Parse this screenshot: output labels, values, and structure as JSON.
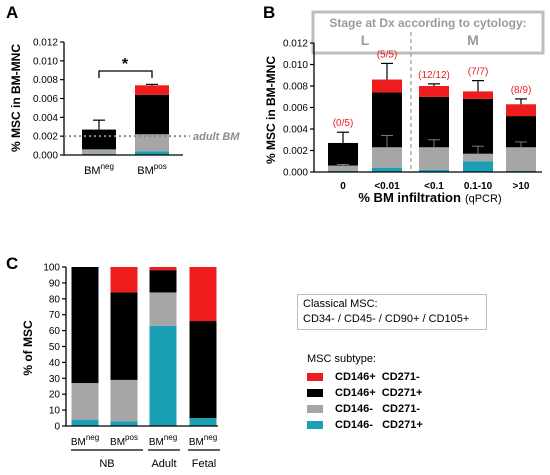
{
  "panels": {
    "a": "A",
    "b": "B",
    "c": "C"
  },
  "colors": {
    "cd146pos_cd271neg": "#ee1c1c",
    "cd146pos_cd271pos": "#000000",
    "cd146neg_cd271neg": "#a6a6a6",
    "cd146neg_cd271pos": "#1a9fb5",
    "reference": "#8c8c8c"
  },
  "legend": {
    "classical_line1": "Classical MSC:",
    "classical_line2": "CD34- / CD45- / CD90+ / CD105+",
    "subtype_title": "MSC subtype:",
    "items": [
      {
        "label": "CD146+  CD271-",
        "color": "#ee1c1c"
      },
      {
        "label": "CD146+  CD271+",
        "color": "#000000"
      },
      {
        "label": "CD146-   CD271-",
        "color": "#a6a6a6"
      },
      {
        "label": "CD146-   CD271+",
        "color": "#1a9fb5"
      }
    ]
  },
  "chart_data": [
    {
      "panel": "A",
      "type": "bar",
      "stacked": true,
      "ylabel": "% MSC in BM-MNC",
      "ylim": [
        0,
        0.012
      ],
      "yticks": [
        "0.000",
        "0.002",
        "0.004",
        "0.006",
        "0.008",
        "0.010",
        "0.012"
      ],
      "categories": [
        {
          "base": "BM",
          "sup": "neg"
        },
        {
          "base": "BM",
          "sup": "pos"
        }
      ],
      "series": [
        {
          "name": "CD146-   CD271+",
          "values": [
            0.0001,
            0.0004
          ]
        },
        {
          "name": "CD146-   CD271-",
          "values": [
            0.0005,
            0.0018
          ]
        },
        {
          "name": "CD146+  CD271+",
          "values": [
            0.0021,
            0.0042
          ]
        },
        {
          "name": "CD146+  CD271-",
          "values": [
            0.0,
            0.001
          ]
        }
      ],
      "error_tops": [
        0.0037,
        0.0075
      ],
      "reference_line": {
        "value": 0.002,
        "label": "adult BM"
      },
      "significance": "*"
    },
    {
      "panel": "B",
      "type": "bar",
      "stacked": true,
      "header": "Stage at Dx according to cytology:",
      "groups": [
        "L",
        "M"
      ],
      "ylabel": "% MSC in BM-MNC",
      "xlabel_bold": "% BM infiltration",
      "xlabel_unit": "(qPCR)",
      "ylim": [
        0,
        0.012
      ],
      "yticks": [
        "0.000",
        "0.002",
        "0.004",
        "0.006",
        "0.008",
        "0.010",
        "0.012"
      ],
      "categories": [
        "0",
        "<0.01",
        "<0.1",
        "0.1-10",
        ">10"
      ],
      "series": [
        {
          "name": "CD146-   CD271+",
          "values": [
            0.0001,
            0.0004,
            0.0002,
            0.001,
            0.0001
          ]
        },
        {
          "name": "CD146-   CD271-",
          "values": [
            0.0005,
            0.0019,
            0.0021,
            0.0007,
            0.0022
          ]
        },
        {
          "name": "CD146+  CD271+",
          "values": [
            0.0021,
            0.0051,
            0.0047,
            0.0051,
            0.0029
          ]
        },
        {
          "name": "CD146+  CD271-",
          "values": [
            0.0,
            0.0012,
            0.001,
            0.0007,
            0.0011
          ]
        }
      ],
      "error_tops": [
        0.0037,
        0.0101,
        0.0082,
        0.0085,
        0.0068
      ],
      "counts": [
        "(0/5)",
        "(5/5)",
        "(12/12)",
        "(7/7)",
        "(8/9)"
      ]
    },
    {
      "panel": "C",
      "type": "bar",
      "stacked": true,
      "ylabel": "% of MSC",
      "ylim": [
        0,
        100
      ],
      "yticks": [
        "0",
        "10",
        "20",
        "30",
        "40",
        "50",
        "60",
        "70",
        "80",
        "90",
        "100"
      ],
      "categories": [
        {
          "base": "BM",
          "sup": "neg"
        },
        {
          "base": "BM",
          "sup": "pos"
        },
        {
          "base": "BM",
          "sup": "neg"
        },
        {
          "base": "BM",
          "sup": "neg"
        }
      ],
      "groups": [
        {
          "label": "NB",
          "span": [
            0,
            1
          ]
        },
        {
          "label": "Adult",
          "span": [
            2,
            2
          ]
        },
        {
          "label": "Fetal",
          "span": [
            3,
            3
          ]
        }
      ],
      "series": [
        {
          "name": "CD146-   CD271+",
          "values": [
            4,
            3,
            63,
            5
          ]
        },
        {
          "name": "CD146-   CD271-",
          "values": [
            23,
            26,
            21,
            0
          ]
        },
        {
          "name": "CD146+  CD271+",
          "values": [
            73,
            55,
            14,
            61
          ]
        },
        {
          "name": "CD146+  CD271-",
          "values": [
            0,
            16,
            2,
            34
          ]
        }
      ]
    }
  ]
}
